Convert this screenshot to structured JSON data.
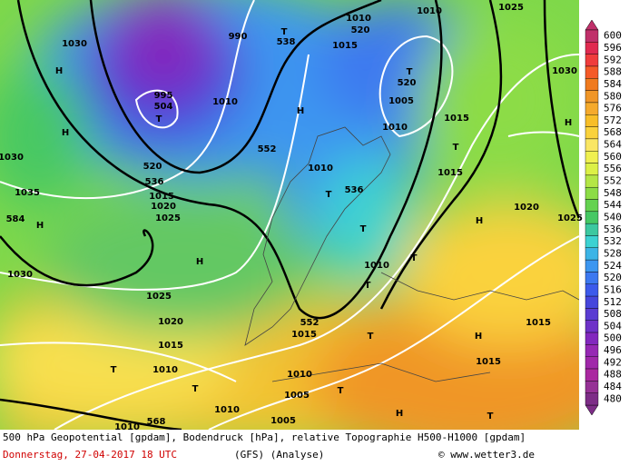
{
  "map": {
    "labels": [
      "H",
      "H",
      "1030",
      "H",
      "584",
      "1030",
      "1035",
      "1030",
      "504",
      "T",
      "995",
      "990",
      "520",
      "536",
      "1015",
      "1020",
      "1025",
      "552",
      "H",
      "1025",
      "1020",
      "1015",
      "T",
      "1010",
      "T",
      "568",
      "538",
      "T",
      "520",
      "1010",
      "1015",
      "T",
      "520",
      "1005",
      "H",
      "1010",
      "1015",
      "T",
      "1015",
      "1010",
      "T",
      "536",
      "T",
      "1010",
      "T",
      "T",
      "552",
      "1015",
      "T",
      "H",
      "1020",
      "1025",
      "H",
      "1030",
      "1025",
      "1010",
      "1015",
      "H",
      "1015",
      "1010",
      "1005",
      "T",
      "H",
      "1005",
      "T",
      "1010",
      "1010",
      "1010"
    ]
  },
  "colorbar": {
    "values": [
      600,
      596,
      592,
      588,
      584,
      580,
      576,
      572,
      568,
      564,
      560,
      556,
      552,
      548,
      544,
      540,
      536,
      532,
      528,
      524,
      520,
      516,
      512,
      508,
      504,
      500,
      496,
      492,
      488,
      484,
      480
    ],
    "colors": [
      "#c0306a",
      "#e02a50",
      "#f03c3c",
      "#f55a28",
      "#f07a1e",
      "#f09628",
      "#f5aa2d",
      "#f8be28",
      "#fad23c",
      "#fae664",
      "#f0f050",
      "#dcf046",
      "#b4e646",
      "#8cdc46",
      "#64d250",
      "#46c864",
      "#3cc8a0",
      "#3cd2d2",
      "#3cb4e6",
      "#3c96f0",
      "#3c78f0",
      "#3c5aeb",
      "#4646dc",
      "#5a3cd2",
      "#6e32c8",
      "#8228be",
      "#9628b4",
      "#a028aa",
      "#aa28a0",
      "#963296",
      "#7d2d87"
    ]
  },
  "footer": {
    "description": "500 hPa Geopotential [gpdam], Bodendruck [hPa], relative Topographie H500-H1000 [gpdam]",
    "date": "Donnerstag, 27-04-2017  18 UTC",
    "model": "(GFS)  (Analyse)",
    "copyright": "© www.wetter3.de"
  }
}
